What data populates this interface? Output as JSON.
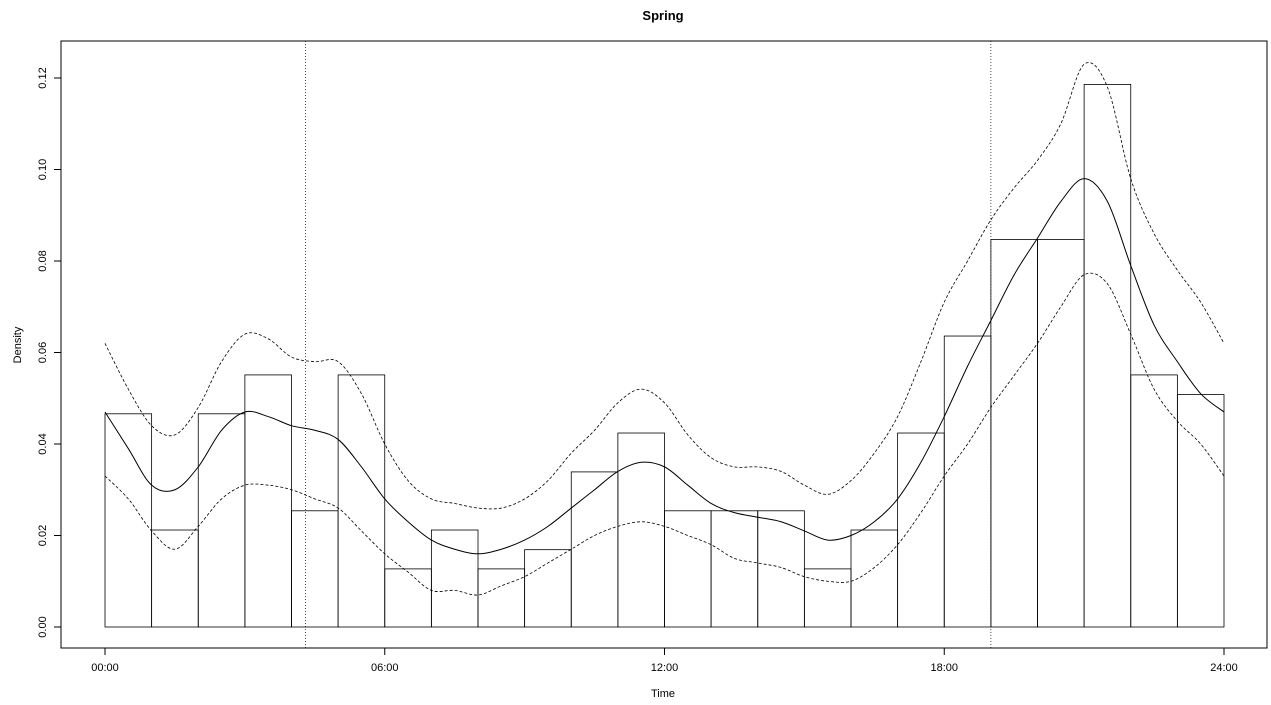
{
  "chart_data": {
    "type": "line",
    "title": "Spring",
    "xlabel": "Time",
    "ylabel": "Density",
    "xlim": [
      0,
      24
    ],
    "ylim": [
      0,
      0.12
    ],
    "x_ticks": [
      {
        "value": 0,
        "label": "00:00"
      },
      {
        "value": 6,
        "label": "06:00"
      },
      {
        "value": 12,
        "label": "12:00"
      },
      {
        "value": 18,
        "label": "18:00"
      },
      {
        "value": 24,
        "label": "24:00"
      }
    ],
    "y_ticks": [
      {
        "value": 0,
        "label": "0.00"
      },
      {
        "value": 0.02,
        "label": "0.02"
      },
      {
        "value": 0.04,
        "label": "0.04"
      },
      {
        "value": 0.06,
        "label": "0.06"
      },
      {
        "value": 0.08,
        "label": "0.08"
      },
      {
        "value": 0.1,
        "label": "0.10"
      },
      {
        "value": 0.12,
        "label": "0.12"
      }
    ],
    "grid": false,
    "histogram": {
      "bin_width_hours": 1,
      "bin_starts": [
        0,
        1,
        2,
        3,
        4,
        5,
        6,
        7,
        8,
        9,
        10,
        11,
        12,
        13,
        14,
        15,
        16,
        17,
        18,
        19,
        20,
        21,
        22,
        23
      ],
      "values": [
        0.0466,
        0.0212,
        0.0466,
        0.0551,
        0.0254,
        0.0551,
        0.0127,
        0.0212,
        0.0127,
        0.0169,
        0.0339,
        0.0424,
        0.0254,
        0.0254,
        0.0254,
        0.0127,
        0.0212,
        0.0424,
        0.0636,
        0.0847,
        0.0847,
        0.1186,
        0.0551,
        0.0508
      ]
    },
    "series": [
      {
        "style": "solid",
        "x": [
          0,
          0.5,
          1,
          1.5,
          2,
          2.5,
          3,
          3.5,
          4,
          4.5,
          5,
          5.5,
          6,
          6.5,
          7,
          7.5,
          8,
          8.5,
          9,
          9.5,
          10,
          10.5,
          11,
          11.5,
          12,
          12.5,
          13,
          13.5,
          14,
          14.5,
          15,
          15.5,
          16,
          16.5,
          17,
          17.5,
          18,
          18.5,
          19,
          19.5,
          20,
          20.5,
          21,
          21.5,
          22,
          22.5,
          23,
          23.5,
          24
        ],
        "y": [
          0.047,
          0.039,
          0.031,
          0.03,
          0.035,
          0.043,
          0.047,
          0.046,
          0.044,
          0.043,
          0.041,
          0.035,
          0.028,
          0.023,
          0.019,
          0.017,
          0.016,
          0.017,
          0.019,
          0.022,
          0.026,
          0.03,
          0.034,
          0.036,
          0.035,
          0.031,
          0.027,
          0.025,
          0.024,
          0.023,
          0.021,
          0.019,
          0.02,
          0.023,
          0.028,
          0.036,
          0.046,
          0.057,
          0.067,
          0.077,
          0.085,
          0.093,
          0.098,
          0.093,
          0.079,
          0.066,
          0.058,
          0.051,
          0.047
        ]
      },
      {
        "style": "dashed",
        "x": [
          0,
          0.5,
          1,
          1.5,
          2,
          2.5,
          3,
          3.5,
          4,
          4.5,
          5,
          5.5,
          6,
          6.5,
          7,
          7.5,
          8,
          8.5,
          9,
          9.5,
          10,
          10.5,
          11,
          11.5,
          12,
          12.5,
          13,
          13.5,
          14,
          14.5,
          15,
          15.5,
          16,
          16.5,
          17,
          17.5,
          18,
          18.5,
          19,
          19.5,
          20,
          20.5,
          21,
          21.5,
          22,
          22.5,
          23,
          23.5,
          24
        ],
        "y": [
          0.062,
          0.052,
          0.044,
          0.042,
          0.048,
          0.058,
          0.064,
          0.063,
          0.059,
          0.058,
          0.058,
          0.051,
          0.04,
          0.032,
          0.028,
          0.027,
          0.026,
          0.026,
          0.028,
          0.032,
          0.038,
          0.043,
          0.049,
          0.052,
          0.049,
          0.042,
          0.037,
          0.035,
          0.035,
          0.034,
          0.031,
          0.029,
          0.032,
          0.038,
          0.046,
          0.058,
          0.071,
          0.08,
          0.089,
          0.096,
          0.102,
          0.11,
          0.123,
          0.118,
          0.098,
          0.086,
          0.078,
          0.071,
          0.062
        ]
      },
      {
        "style": "dashed",
        "x": [
          0,
          0.5,
          1,
          1.5,
          2,
          2.5,
          3,
          3.5,
          4,
          4.5,
          5,
          5.5,
          6,
          6.5,
          7,
          7.5,
          8,
          8.5,
          9,
          9.5,
          10,
          10.5,
          11,
          11.5,
          12,
          12.5,
          13,
          13.5,
          14,
          14.5,
          15,
          15.5,
          16,
          16.5,
          17,
          17.5,
          18,
          18.5,
          19,
          19.5,
          20,
          20.5,
          21,
          21.5,
          22,
          22.5,
          23,
          23.5,
          24
        ],
        "y": [
          0.033,
          0.028,
          0.021,
          0.017,
          0.022,
          0.028,
          0.031,
          0.031,
          0.03,
          0.028,
          0.026,
          0.021,
          0.016,
          0.012,
          0.008,
          0.008,
          0.007,
          0.009,
          0.011,
          0.014,
          0.017,
          0.02,
          0.022,
          0.023,
          0.022,
          0.02,
          0.018,
          0.015,
          0.014,
          0.013,
          0.011,
          0.01,
          0.01,
          0.013,
          0.018,
          0.025,
          0.033,
          0.04,
          0.048,
          0.055,
          0.062,
          0.07,
          0.077,
          0.075,
          0.064,
          0.052,
          0.045,
          0.04,
          0.033
        ]
      }
    ],
    "vertical_lines": [
      {
        "x": 4.3,
        "style": "dotted"
      },
      {
        "x": 19.0,
        "style": "dotted"
      }
    ]
  }
}
